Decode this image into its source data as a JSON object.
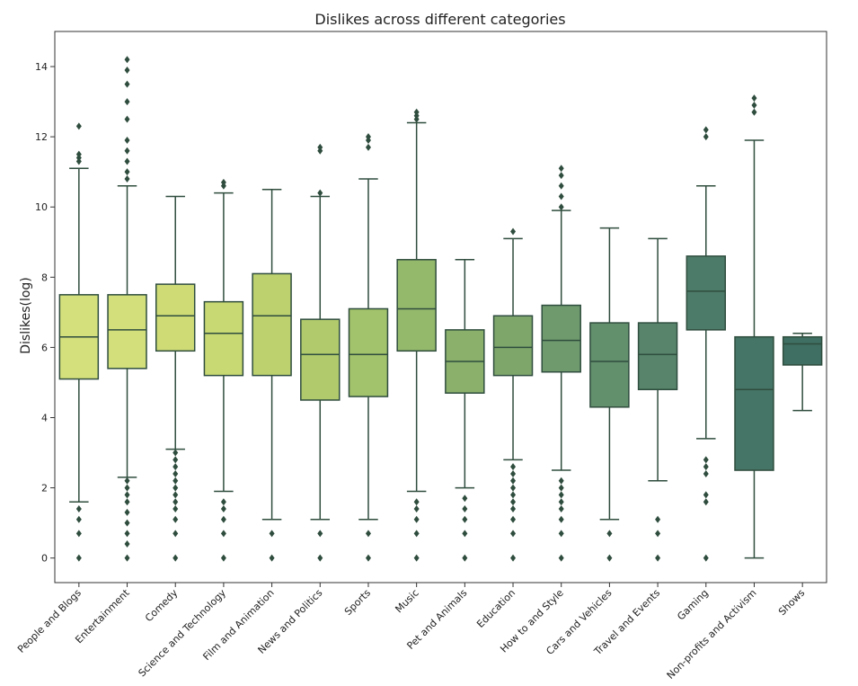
{
  "chart_data": {
    "type": "box",
    "title": "Dislikes across different categories",
    "xlabel": "",
    "ylabel": "Dislikes(log)",
    "ylim": [
      -0.7,
      15
    ],
    "yticks": [
      0,
      2,
      4,
      6,
      8,
      10,
      12,
      14
    ],
    "grid": false,
    "legend": "none",
    "series": [
      {
        "category": "People and Blogs",
        "color": "#d4e07c",
        "whisker_low": 1.6,
        "q1": 5.1,
        "median": 6.3,
        "q3": 7.5,
        "whisker_high": 11.1,
        "outliers": [
          0,
          0.7,
          1.1,
          1.4,
          11.3,
          11.4,
          11.5,
          12.3
        ]
      },
      {
        "category": "Entertainment",
        "color": "#d2df7a",
        "whisker_low": 2.3,
        "q1": 5.4,
        "median": 6.5,
        "q3": 7.5,
        "whisker_high": 10.6,
        "outliers": [
          0,
          0.4,
          0.7,
          1.0,
          1.3,
          1.6,
          1.8,
          2.0,
          2.2,
          10.8,
          11.0,
          11.3,
          11.6,
          11.9,
          12.5,
          13.0,
          13.5,
          13.9,
          14.2
        ]
      },
      {
        "category": "Comedy",
        "color": "#cfdc76",
        "whisker_low": 3.1,
        "q1": 5.9,
        "median": 6.9,
        "q3": 7.8,
        "whisker_high": 10.3,
        "outliers": [
          0,
          0.7,
          1.1,
          1.4,
          1.6,
          1.8,
          2.0,
          2.2,
          2.4,
          2.6,
          2.8,
          3.0
        ]
      },
      {
        "category": "Science and Technology",
        "color": "#c8d872",
        "whisker_low": 1.9,
        "q1": 5.2,
        "median": 6.4,
        "q3": 7.3,
        "whisker_high": 10.4,
        "outliers": [
          0,
          0.7,
          1.1,
          1.4,
          1.6,
          10.6,
          10.7
        ]
      },
      {
        "category": "Film and Animation",
        "color": "#bdd26e",
        "whisker_low": 1.1,
        "q1": 5.2,
        "median": 6.9,
        "q3": 8.1,
        "whisker_high": 10.5,
        "outliers": [
          0,
          0.7
        ]
      },
      {
        "category": "News and Politics",
        "color": "#b0ca6c",
        "whisker_low": 1.1,
        "q1": 4.5,
        "median": 5.8,
        "q3": 6.8,
        "whisker_high": 10.3,
        "outliers": [
          0,
          0.7,
          10.4,
          11.6,
          11.7
        ]
      },
      {
        "category": "Sports",
        "color": "#a2c26b",
        "whisker_low": 1.1,
        "q1": 4.6,
        "median": 5.8,
        "q3": 7.1,
        "whisker_high": 10.8,
        "outliers": [
          0,
          0.7,
          11.7,
          11.9,
          12.0
        ]
      },
      {
        "category": "Music",
        "color": "#95b96b",
        "whisker_low": 1.9,
        "q1": 5.9,
        "median": 7.1,
        "q3": 8.5,
        "whisker_high": 12.4,
        "outliers": [
          0,
          0.7,
          1.1,
          1.4,
          1.6,
          12.5,
          12.6,
          12.7
        ]
      },
      {
        "category": "Pet and Animals",
        "color": "#8ab06b",
        "whisker_low": 2.0,
        "q1": 4.7,
        "median": 5.6,
        "q3": 6.5,
        "whisker_high": 8.5,
        "outliers": [
          0,
          0.7,
          1.1,
          1.4,
          1.7
        ]
      },
      {
        "category": "Education",
        "color": "#7ea66b",
        "whisker_low": 2.8,
        "q1": 5.2,
        "median": 6.0,
        "q3": 6.9,
        "whisker_high": 9.1,
        "outliers": [
          0,
          0.7,
          1.1,
          1.4,
          1.6,
          1.8,
          2.0,
          2.2,
          2.4,
          2.6,
          9.3
        ]
      },
      {
        "category": "How to and Style",
        "color": "#6f9a6d",
        "whisker_low": 2.5,
        "q1": 5.3,
        "median": 6.2,
        "q3": 7.2,
        "whisker_high": 9.9,
        "outliers": [
          0,
          0.7,
          1.1,
          1.4,
          1.6,
          1.8,
          2.0,
          2.2,
          10.0,
          10.3,
          10.6,
          10.9,
          11.1
        ]
      },
      {
        "category": "Cars and Vehicles",
        "color": "#628f6c",
        "whisker_low": 1.1,
        "q1": 4.3,
        "median": 5.6,
        "q3": 6.7,
        "whisker_high": 9.4,
        "outliers": [
          0,
          0.7
        ]
      },
      {
        "category": "Travel and Events",
        "color": "#57846b",
        "whisker_low": 2.2,
        "q1": 4.8,
        "median": 5.8,
        "q3": 6.7,
        "whisker_high": 9.1,
        "outliers": [
          0,
          0.7,
          1.1
        ]
      },
      {
        "category": "Gaming",
        "color": "#4d7b69",
        "whisker_low": 3.4,
        "q1": 6.5,
        "median": 7.6,
        "q3": 8.6,
        "whisker_high": 10.6,
        "outliers": [
          0,
          1.6,
          1.8,
          2.4,
          2.6,
          2.8,
          12.0,
          12.2
        ]
      },
      {
        "category": "Non-profits and Activism",
        "color": "#457566",
        "whisker_low": 0,
        "q1": 2.5,
        "median": 4.8,
        "q3": 6.3,
        "whisker_high": 11.9,
        "outliers": [
          12.7,
          12.9,
          13.1
        ]
      },
      {
        "category": "Shows",
        "color": "#3f6f62",
        "whisker_low": 4.2,
        "q1": 5.5,
        "median": 6.1,
        "q3": 6.3,
        "whisker_high": 6.4,
        "outliers": []
      }
    ]
  }
}
